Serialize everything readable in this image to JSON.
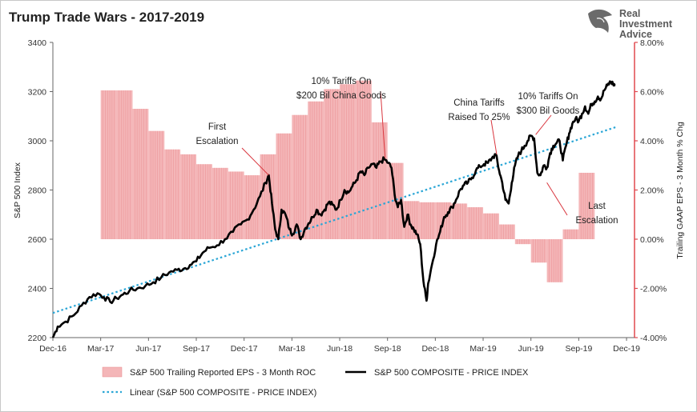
{
  "chart_data": {
    "type": "line",
    "title": "Trump Trade Wars - 2017-2019",
    "ylabel_left": "S&P 500 Index",
    "ylabel_right": "Trailing GAAP EPS - 3 Month % Chg",
    "x_ticks": [
      "Dec-16",
      "Mar-17",
      "Jun-17",
      "Sep-17",
      "Dec-17",
      "Mar-18",
      "Jun-18",
      "Sep-18",
      "Dec-18",
      "Mar-19",
      "Jun-19",
      "Sep-19",
      "Dec-19"
    ],
    "y_left_ticks": [
      "2200",
      "2400",
      "2600",
      "2800",
      "3000",
      "3200",
      "3400"
    ],
    "y_left_range": [
      2200,
      3400
    ],
    "y_right_ticks": [
      "-4.00%",
      "-2.00%",
      "0.00%",
      "2.00%",
      "4.00%",
      "6.00%",
      "8.00%"
    ],
    "y_right_range": [
      -4,
      8
    ],
    "x_range_months": [
      0,
      36.5
    ],
    "legend": {
      "eps": "S&P 500 Trailing Reported EPS - 3 Month ROC",
      "price": "S&P 500 COMPOSITE - PRICE INDEX",
      "linear": "Linear (S&P 500 COMPOSITE - PRICE INDEX)"
    },
    "colors": {
      "eps_bar": "#f4b6b8",
      "eps_bar_edge": "#e8898c",
      "price_line": "#000000",
      "trend_line": "#2aa6d6",
      "right_axis": "#e0484f"
    },
    "eps_roc_pct": [
      [
        3.0,
        6.05
      ],
      [
        4.0,
        6.05
      ],
      [
        5.0,
        5.3
      ],
      [
        6.0,
        4.4
      ],
      [
        7.0,
        3.65
      ],
      [
        8.0,
        3.45
      ],
      [
        9.0,
        3.05
      ],
      [
        10.0,
        2.9
      ],
      [
        11.0,
        2.75
      ],
      [
        12.0,
        2.6
      ],
      [
        13.0,
        3.45
      ],
      [
        14.0,
        4.3
      ],
      [
        15.0,
        5.05
      ],
      [
        16.0,
        5.6
      ],
      [
        17.0,
        6.1
      ],
      [
        18.0,
        6.3
      ],
      [
        19.0,
        6.45
      ],
      [
        20.0,
        4.75
      ],
      [
        21.0,
        3.1
      ],
      [
        22.0,
        1.55
      ],
      [
        23.0,
        1.5
      ],
      [
        24.0,
        1.5
      ],
      [
        25.0,
        1.45
      ],
      [
        26.0,
        1.3
      ],
      [
        27.0,
        1.05
      ],
      [
        28.0,
        0.6
      ],
      [
        29.0,
        -0.2
      ],
      [
        30.0,
        -0.95
      ],
      [
        31.0,
        -1.75
      ],
      [
        32.0,
        0.4
      ],
      [
        33.0,
        2.7
      ]
    ],
    "price_index": [
      [
        0.0,
        2200
      ],
      [
        0.3,
        2245
      ],
      [
        0.8,
        2265
      ],
      [
        1.3,
        2290
      ],
      [
        1.8,
        2330
      ],
      [
        2.3,
        2365
      ],
      [
        2.8,
        2380
      ],
      [
        3.2,
        2365
      ],
      [
        3.6,
        2345
      ],
      [
        4.0,
        2360
      ],
      [
        4.4,
        2375
      ],
      [
        4.8,
        2390
      ],
      [
        5.3,
        2400
      ],
      [
        5.8,
        2410
      ],
      [
        6.3,
        2425
      ],
      [
        6.8,
        2445
      ],
      [
        7.3,
        2465
      ],
      [
        7.8,
        2475
      ],
      [
        8.2,
        2480
      ],
      [
        8.6,
        2495
      ],
      [
        9.0,
        2510
      ],
      [
        9.4,
        2545
      ],
      [
        9.8,
        2565
      ],
      [
        10.3,
        2575
      ],
      [
        10.8,
        2600
      ],
      [
        11.3,
        2630
      ],
      [
        11.8,
        2660
      ],
      [
        12.2,
        2680
      ],
      [
        12.6,
        2720
      ],
      [
        13.0,
        2775
      ],
      [
        13.35,
        2830
      ],
      [
        13.55,
        2860
      ],
      [
        13.75,
        2745
      ],
      [
        13.95,
        2640
      ],
      [
        14.15,
        2600
      ],
      [
        14.35,
        2720
      ],
      [
        14.6,
        2700
      ],
      [
        14.85,
        2640
      ],
      [
        15.05,
        2620
      ],
      [
        15.3,
        2660
      ],
      [
        15.55,
        2600
      ],
      [
        15.8,
        2640
      ],
      [
        16.05,
        2665
      ],
      [
        16.3,
        2690
      ],
      [
        16.55,
        2720
      ],
      [
        16.8,
        2700
      ],
      [
        17.05,
        2720
      ],
      [
        17.3,
        2750
      ],
      [
        17.55,
        2740
      ],
      [
        17.8,
        2720
      ],
      [
        18.05,
        2760
      ],
      [
        18.3,
        2800
      ],
      [
        18.55,
        2790
      ],
      [
        18.8,
        2815
      ],
      [
        19.05,
        2840
      ],
      [
        19.3,
        2875
      ],
      [
        19.55,
        2860
      ],
      [
        19.8,
        2890
      ],
      [
        20.05,
        2905
      ],
      [
        20.3,
        2890
      ],
      [
        20.55,
        2915
      ],
      [
        20.8,
        2925
      ],
      [
        21.05,
        2910
      ],
      [
        21.25,
        2890
      ],
      [
        21.45,
        2780
      ],
      [
        21.65,
        2730
      ],
      [
        21.85,
        2760
      ],
      [
        22.05,
        2650
      ],
      [
        22.25,
        2700
      ],
      [
        22.45,
        2660
      ],
      [
        22.65,
        2640
      ],
      [
        22.85,
        2620
      ],
      [
        23.05,
        2580
      ],
      [
        23.25,
        2430
      ],
      [
        23.45,
        2350
      ],
      [
        23.55,
        2420
      ],
      [
        23.8,
        2500
      ],
      [
        24.05,
        2580
      ],
      [
        24.3,
        2630
      ],
      [
        24.55,
        2690
      ],
      [
        24.8,
        2710
      ],
      [
        25.05,
        2730
      ],
      [
        25.3,
        2760
      ],
      [
        25.55,
        2800
      ],
      [
        25.8,
        2820
      ],
      [
        26.05,
        2830
      ],
      [
        26.3,
        2850
      ],
      [
        26.55,
        2880
      ],
      [
        26.8,
        2895
      ],
      [
        27.05,
        2905
      ],
      [
        27.3,
        2910
      ],
      [
        27.55,
        2930
      ],
      [
        27.8,
        2945
      ],
      [
        28.0,
        2880
      ],
      [
        28.2,
        2830
      ],
      [
        28.4,
        2760
      ],
      [
        28.6,
        2745
      ],
      [
        28.8,
        2830
      ],
      [
        29.0,
        2900
      ],
      [
        29.2,
        2940
      ],
      [
        29.4,
        2960
      ],
      [
        29.6,
        2980
      ],
      [
        29.8,
        3000
      ],
      [
        30.0,
        3020
      ],
      [
        30.2,
        3010
      ],
      [
        30.4,
        2870
      ],
      [
        30.6,
        2860
      ],
      [
        30.8,
        2900
      ],
      [
        31.0,
        2890
      ],
      [
        31.2,
        2950
      ],
      [
        31.4,
        2980
      ],
      [
        31.6,
        2990
      ],
      [
        31.8,
        3000
      ],
      [
        32.0,
        2920
      ],
      [
        32.2,
        2980
      ],
      [
        32.4,
        3030
      ],
      [
        32.6,
        3070
      ],
      [
        32.8,
        3090
      ],
      [
        33.0,
        3080
      ],
      [
        33.2,
        3110
      ],
      [
        33.4,
        3140
      ],
      [
        33.6,
        3110
      ],
      [
        33.8,
        3150
      ],
      [
        34.0,
        3160
      ],
      [
        34.2,
        3180
      ],
      [
        34.4,
        3170
      ],
      [
        34.6,
        3205
      ],
      [
        34.8,
        3225
      ],
      [
        35.0,
        3240
      ],
      [
        35.15,
        3232
      ],
      [
        35.3,
        3225
      ]
    ],
    "trend": {
      "start": [
        0,
        2300
      ],
      "end": [
        35.3,
        3055
      ]
    },
    "annotations": [
      {
        "lines": [
          "First",
          "Escalation"
        ],
        "target_x": 13.55,
        "target_y": 2860
      },
      {
        "lines": [
          "10% Tariffs On",
          "$200 Bil China Goods"
        ],
        "target_x": 20.85,
        "target_y": 2930
      },
      {
        "lines": [
          "China Tariffs",
          "Raised To 25%"
        ],
        "target_x": 27.85,
        "target_y": 2945
      },
      {
        "lines": [
          "10% Tariffs On",
          "$300 Bil Goods"
        ],
        "target_x": 30.3,
        "target_y": 3025
      },
      {
        "lines": [
          "Last",
          "Escalation"
        ],
        "target_x": 31.0,
        "target_y": 2830
      }
    ]
  },
  "logo": {
    "line1": "Real",
    "line2": "Investment",
    "line3": "Advice"
  }
}
